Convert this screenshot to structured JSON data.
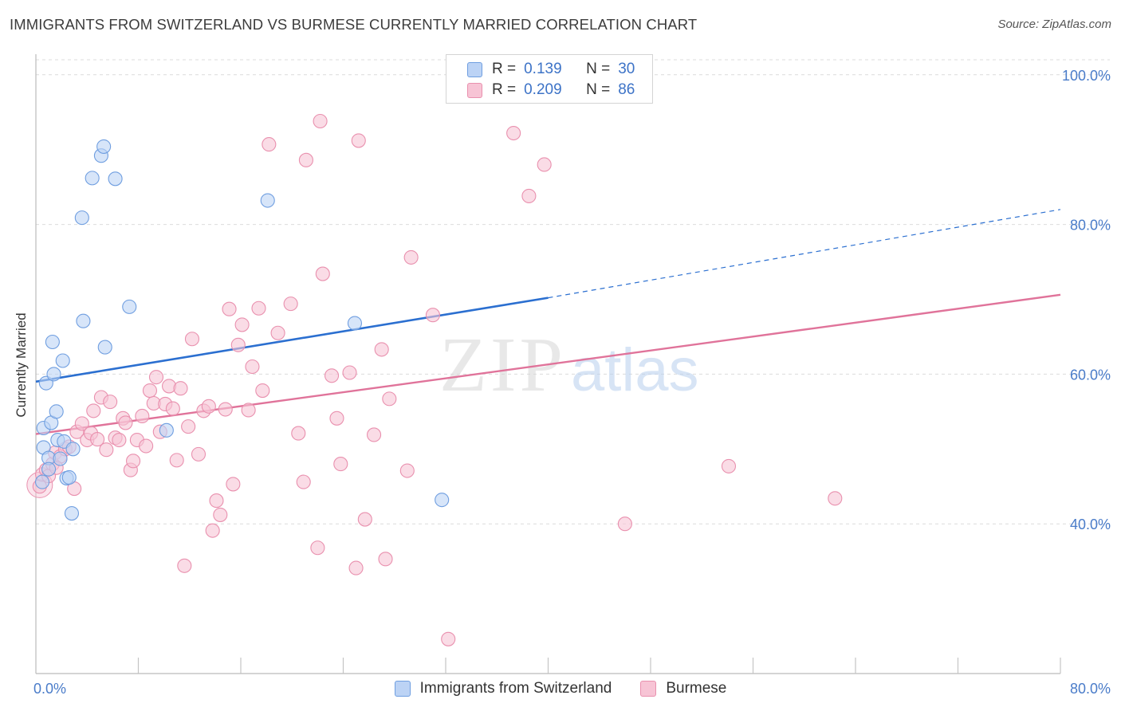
{
  "title": "IMMIGRANTS FROM SWITZERLAND VS BURMESE CURRENTLY MARRIED CORRELATION CHART",
  "source": "Source: ZipAtlas.com",
  "watermark": {
    "zip": "ZIP",
    "atlas": "atlas"
  },
  "legend_top": {
    "rows": [
      {
        "r_label": "R =",
        "r_value": "0.139",
        "n_label": "N =",
        "n_value": "30"
      },
      {
        "r_label": "R =",
        "r_value": "0.209",
        "n_label": "N =",
        "n_value": "86"
      }
    ]
  },
  "colors": {
    "blue_fill": "#bcd3f5",
    "blue_stroke": "#6f9ee0",
    "blue_line": "#2b6fd0",
    "pink_fill": "#f7c4d5",
    "pink_stroke": "#e990ae",
    "pink_line": "#e0739a",
    "grid": "#dcdcdc",
    "tick_text": "#4a7cc9"
  },
  "chart_data": {
    "type": "scatter",
    "title": "IMMIGRANTS FROM SWITZERLAND VS BURMESE CURRENTLY MARRIED CORRELATION CHART",
    "xlabel": "",
    "ylabel": "Currently Married",
    "xlim": [
      0,
      80
    ],
    "ylim": [
      20,
      102
    ],
    "x_tick_labels": [
      "0.0%",
      "80.0%"
    ],
    "y_ticks": [
      40,
      60,
      80,
      100
    ],
    "y_tick_labels": [
      "40.0%",
      "60.0%",
      "80.0%",
      "100.0%"
    ],
    "grid": true,
    "legend_placement": "bottom",
    "series": [
      {
        "name": "Immigrants from Switzerland",
        "color": "blue",
        "points": [
          [
            0.5,
            45.6
          ],
          [
            0.6,
            50.2
          ],
          [
            0.6,
            52.8
          ],
          [
            0.8,
            58.8
          ],
          [
            1.0,
            48.8
          ],
          [
            1.2,
            53.5
          ],
          [
            1.3,
            64.3
          ],
          [
            1.4,
            60.0
          ],
          [
            1.6,
            55.0
          ],
          [
            1.7,
            51.2
          ],
          [
            1.9,
            48.7
          ],
          [
            2.1,
            61.8
          ],
          [
            2.2,
            51.0
          ],
          [
            2.4,
            46.1
          ],
          [
            2.6,
            46.2
          ],
          [
            2.8,
            41.4
          ],
          [
            2.9,
            50.0
          ],
          [
            3.7,
            67.1
          ],
          [
            3.6,
            80.9
          ],
          [
            4.4,
            86.2
          ],
          [
            5.1,
            89.2
          ],
          [
            5.3,
            90.4
          ],
          [
            5.4,
            63.6
          ],
          [
            6.2,
            86.1
          ],
          [
            7.3,
            69.0
          ],
          [
            10.2,
            52.5
          ],
          [
            18.1,
            83.2
          ],
          [
            24.9,
            66.8
          ],
          [
            31.7,
            43.2
          ],
          [
            1.0,
            47.3
          ]
        ],
        "trend": {
          "x": [
            0,
            40
          ],
          "y": [
            59.0,
            70.2
          ],
          "dashed_to": [
            80,
            82.0
          ]
        }
      },
      {
        "name": "Burmese",
        "color": "pink",
        "points": [
          [
            0.3,
            45.0
          ],
          [
            0.5,
            46.6
          ],
          [
            0.8,
            47.2
          ],
          [
            1.0,
            46.4
          ],
          [
            1.3,
            48.0
          ],
          [
            1.5,
            49.5
          ],
          [
            1.9,
            49.0
          ],
          [
            2.3,
            50.0
          ],
          [
            2.6,
            50.3
          ],
          [
            3.0,
            44.7
          ],
          [
            3.2,
            52.3
          ],
          [
            3.6,
            53.4
          ],
          [
            4.0,
            51.2
          ],
          [
            4.3,
            52.1
          ],
          [
            4.5,
            55.1
          ],
          [
            4.8,
            51.3
          ],
          [
            5.1,
            56.9
          ],
          [
            5.5,
            49.9
          ],
          [
            5.8,
            56.3
          ],
          [
            6.2,
            51.5
          ],
          [
            6.5,
            51.2
          ],
          [
            6.8,
            54.1
          ],
          [
            7.0,
            53.5
          ],
          [
            7.4,
            47.2
          ],
          [
            7.6,
            48.4
          ],
          [
            7.9,
            51.2
          ],
          [
            8.3,
            54.4
          ],
          [
            8.6,
            50.4
          ],
          [
            8.9,
            57.8
          ],
          [
            9.2,
            56.1
          ],
          [
            9.4,
            59.6
          ],
          [
            9.7,
            52.3
          ],
          [
            10.1,
            56.0
          ],
          [
            10.4,
            58.4
          ],
          [
            10.7,
            55.4
          ],
          [
            11.0,
            48.5
          ],
          [
            11.3,
            58.1
          ],
          [
            11.6,
            34.4
          ],
          [
            11.9,
            53.0
          ],
          [
            12.2,
            64.7
          ],
          [
            12.7,
            49.3
          ],
          [
            13.1,
            55.1
          ],
          [
            13.5,
            55.7
          ],
          [
            13.8,
            39.1
          ],
          [
            14.1,
            43.1
          ],
          [
            14.4,
            41.2
          ],
          [
            14.8,
            55.3
          ],
          [
            15.1,
            68.7
          ],
          [
            15.4,
            45.3
          ],
          [
            15.8,
            63.9
          ],
          [
            16.1,
            66.6
          ],
          [
            16.6,
            55.2
          ],
          [
            16.9,
            61.0
          ],
          [
            17.4,
            68.8
          ],
          [
            17.7,
            57.8
          ],
          [
            18.2,
            90.7
          ],
          [
            18.9,
            65.5
          ],
          [
            19.9,
            69.4
          ],
          [
            20.5,
            52.1
          ],
          [
            20.9,
            45.6
          ],
          [
            21.1,
            88.6
          ],
          [
            22.0,
            36.8
          ],
          [
            22.4,
            73.4
          ],
          [
            22.2,
            93.8
          ],
          [
            23.1,
            59.8
          ],
          [
            23.5,
            54.1
          ],
          [
            23.8,
            48.0
          ],
          [
            24.5,
            60.2
          ],
          [
            25.0,
            34.1
          ],
          [
            25.2,
            91.2
          ],
          [
            25.7,
            40.6
          ],
          [
            27.0,
            63.3
          ],
          [
            26.4,
            51.9
          ],
          [
            27.3,
            35.3
          ],
          [
            27.6,
            56.7
          ],
          [
            29.0,
            47.1
          ],
          [
            29.3,
            75.6
          ],
          [
            31.0,
            67.9
          ],
          [
            32.2,
            24.6
          ],
          [
            37.3,
            92.2
          ],
          [
            38.5,
            83.8
          ],
          [
            39.7,
            88.0
          ],
          [
            46.0,
            40.0
          ],
          [
            54.1,
            47.7
          ],
          [
            62.4,
            43.4
          ],
          [
            1.6,
            47.5
          ]
        ],
        "trend": {
          "x": [
            0,
            80
          ],
          "y": [
            52.0,
            70.6
          ]
        }
      }
    ]
  }
}
